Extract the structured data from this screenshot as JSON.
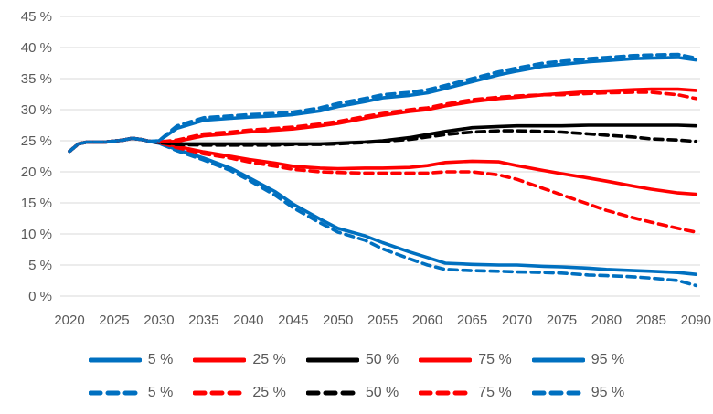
{
  "chart_data": {
    "type": "line",
    "title": "",
    "xlabel": "",
    "ylabel": "",
    "legend_position": "bottom",
    "grid": true,
    "colors": {
      "blue": "#0070C0",
      "red": "#FF0000",
      "black": "#000000",
      "gridline": "#D9D9D9",
      "axis_text": "#595959",
      "background": "#FFFFFF"
    },
    "y_axis": {
      "range": [
        0,
        45
      ],
      "tick_values": [
        45,
        40,
        35,
        30,
        25,
        20,
        15,
        10,
        5,
        0
      ],
      "tick_labels": [
        "45 %",
        "40 %",
        "35 %",
        "30 %",
        "25 %",
        "20 %",
        "15 %",
        "10 %",
        "5 %",
        "0 %"
      ]
    },
    "x_axis": {
      "range": [
        2020,
        2090
      ],
      "tick_values": [
        2020,
        2025,
        2030,
        2035,
        2040,
        2045,
        2050,
        2055,
        2060,
        2065,
        2070,
        2075,
        2080,
        2085,
        2090
      ],
      "tick_labels": [
        "2020",
        "2025",
        "2030",
        "2035",
        "2040",
        "2045",
        "2050",
        "2055",
        "2060",
        "2065",
        "2070",
        "2075",
        "2080",
        "2085",
        "2090"
      ]
    },
    "x": [
      2020,
      2021,
      2022,
      2024,
      2026,
      2027,
      2028,
      2029,
      2030,
      2032,
      2035,
      2038,
      2040,
      2043,
      2045,
      2048,
      2050,
      2053,
      2055,
      2058,
      2060,
      2062,
      2065,
      2068,
      2070,
      2073,
      2075,
      2078,
      2080,
      2083,
      2085,
      2088,
      2090
    ],
    "series": [
      {
        "name": "p5-solid",
        "label": "5 %",
        "color_key": "blue",
        "dash": false,
        "values": [
          23.3,
          24.5,
          24.8,
          24.8,
          25.1,
          25.4,
          25.2,
          24.9,
          24.6,
          23.6,
          22.2,
          20.6,
          19.1,
          16.8,
          14.8,
          12.4,
          10.9,
          9.7,
          8.6,
          7.1,
          6.2,
          5.3,
          5.1,
          5.0,
          5.0,
          4.8,
          4.7,
          4.5,
          4.3,
          4.1,
          4.0,
          3.8,
          3.5
        ]
      },
      {
        "name": "p25-solid",
        "label": "25 %",
        "color_key": "red",
        "dash": false,
        "values": [
          23.3,
          24.5,
          24.8,
          24.8,
          25.1,
          25.4,
          25.2,
          24.9,
          24.7,
          24.1,
          23.2,
          22.5,
          22.0,
          21.4,
          20.9,
          20.6,
          20.5,
          20.6,
          20.6,
          20.7,
          21.0,
          21.5,
          21.7,
          21.6,
          21.0,
          20.2,
          19.7,
          19.0,
          18.5,
          17.7,
          17.2,
          16.6,
          16.4
        ]
      },
      {
        "name": "p50-solid",
        "label": "50 %",
        "color_key": "black",
        "dash": false,
        "values": [
          23.3,
          24.5,
          24.8,
          24.8,
          25.1,
          25.4,
          25.2,
          24.9,
          24.7,
          24.5,
          24.5,
          24.5,
          24.5,
          24.5,
          24.5,
          24.5,
          24.6,
          24.8,
          25.0,
          25.5,
          26.0,
          26.5,
          27.1,
          27.3,
          27.4,
          27.4,
          27.4,
          27.5,
          27.5,
          27.5,
          27.5,
          27.5,
          27.4
        ]
      },
      {
        "name": "p75-solid",
        "label": "75 %",
        "color_key": "red",
        "dash": false,
        "values": [
          23.3,
          24.5,
          24.8,
          24.8,
          25.1,
          25.4,
          25.2,
          24.9,
          24.8,
          24.9,
          25.8,
          26.1,
          26.4,
          26.7,
          26.9,
          27.4,
          27.8,
          28.6,
          29.1,
          29.7,
          30.0,
          30.6,
          31.3,
          31.8,
          32.0,
          32.4,
          32.6,
          32.9,
          33.0,
          33.2,
          33.3,
          33.3,
          33.1
        ]
      },
      {
        "name": "p95-solid",
        "label": "95 %",
        "color_key": "blue",
        "dash": false,
        "values": [
          23.3,
          24.5,
          24.8,
          24.8,
          25.1,
          25.4,
          25.2,
          24.9,
          25.0,
          27.0,
          28.3,
          28.6,
          28.8,
          29.0,
          29.2,
          29.8,
          30.5,
          31.3,
          31.9,
          32.3,
          32.7,
          33.4,
          34.5,
          35.6,
          36.2,
          37.0,
          37.3,
          37.7,
          37.9,
          38.2,
          38.3,
          38.4,
          38.0
        ]
      },
      {
        "name": "p5-dashed",
        "label": "5 %",
        "color_key": "blue",
        "dash": true,
        "values": [
          23.3,
          24.5,
          24.8,
          24.8,
          25.1,
          25.4,
          25.2,
          24.9,
          24.6,
          23.4,
          21.9,
          20.2,
          18.7,
          16.2,
          14.2,
          11.8,
          10.3,
          9.0,
          7.6,
          6.0,
          5.0,
          4.3,
          4.1,
          4.0,
          3.9,
          3.8,
          3.7,
          3.4,
          3.3,
          3.1,
          2.9,
          2.5,
          1.7
        ]
      },
      {
        "name": "p25-dashed",
        "label": "25 %",
        "color_key": "red",
        "dash": true,
        "values": [
          23.3,
          24.5,
          24.8,
          24.8,
          25.1,
          25.4,
          25.2,
          24.9,
          24.7,
          23.9,
          22.9,
          22.2,
          21.6,
          20.9,
          20.4,
          20.0,
          19.9,
          19.8,
          19.8,
          19.8,
          19.8,
          20.0,
          20.0,
          19.5,
          18.8,
          17.3,
          16.3,
          14.8,
          13.8,
          12.6,
          11.9,
          10.9,
          10.3
        ]
      },
      {
        "name": "p50-dashed",
        "label": "50 %",
        "color_key": "black",
        "dash": true,
        "values": [
          23.3,
          24.5,
          24.8,
          24.8,
          25.1,
          25.4,
          25.2,
          24.9,
          24.7,
          24.4,
          24.3,
          24.3,
          24.3,
          24.3,
          24.4,
          24.4,
          24.5,
          24.7,
          24.9,
          25.2,
          25.6,
          26.0,
          26.4,
          26.6,
          26.6,
          26.5,
          26.4,
          26.1,
          25.9,
          25.6,
          25.3,
          25.1,
          24.9
        ]
      },
      {
        "name": "p75-dashed",
        "label": "75 %",
        "color_key": "red",
        "dash": true,
        "values": [
          23.3,
          24.5,
          24.8,
          24.8,
          25.1,
          25.4,
          25.2,
          24.9,
          24.8,
          25.1,
          26.1,
          26.4,
          26.7,
          27.0,
          27.2,
          27.7,
          28.1,
          28.9,
          29.4,
          30.0,
          30.3,
          30.9,
          31.6,
          32.0,
          32.2,
          32.4,
          32.4,
          32.6,
          32.7,
          32.8,
          32.8,
          32.4,
          31.8
        ]
      },
      {
        "name": "p95-dashed",
        "label": "95 %",
        "color_key": "blue",
        "dash": true,
        "values": [
          23.3,
          24.5,
          24.8,
          24.8,
          25.1,
          25.4,
          25.2,
          24.9,
          25.0,
          27.4,
          28.7,
          29.0,
          29.2,
          29.4,
          29.6,
          30.3,
          31.0,
          31.8,
          32.4,
          32.8,
          33.2,
          33.9,
          35.0,
          36.1,
          36.7,
          37.5,
          37.8,
          38.2,
          38.4,
          38.7,
          38.8,
          38.9,
          38.3
        ]
      }
    ]
  }
}
